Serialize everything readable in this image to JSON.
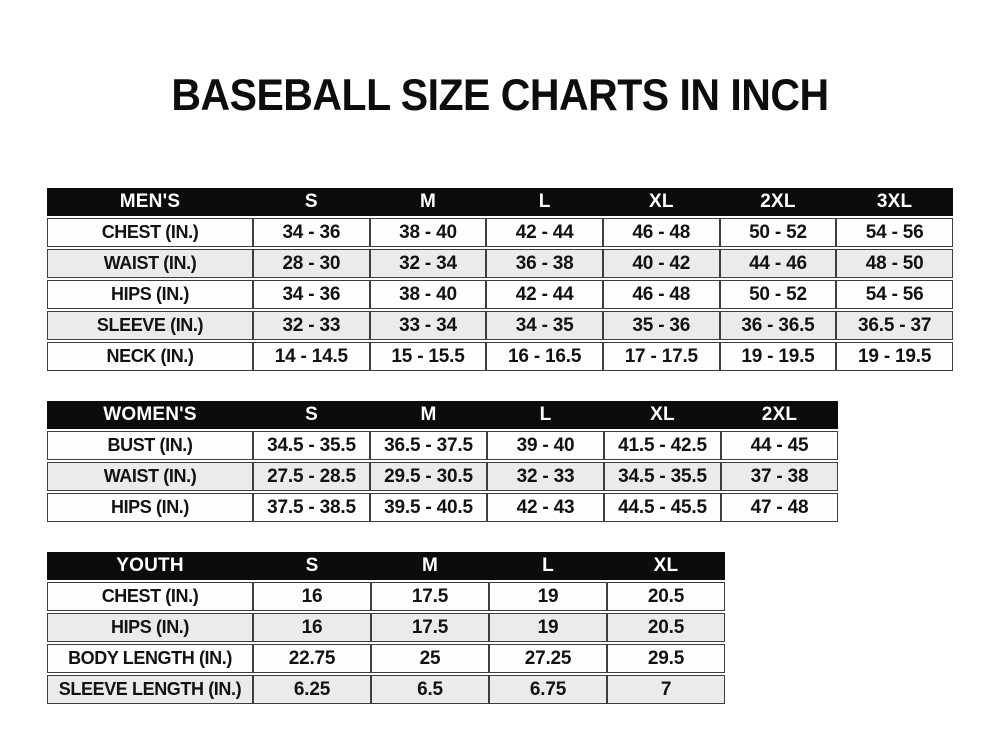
{
  "title": "BASEBALL SIZE CHARTS IN INCH",
  "colors": {
    "header_bg": "#0c0c0c",
    "header_text": "#ffffff",
    "row_white": "#fefefe",
    "row_alt": "#ebebeb",
    "cell_text": "#121212",
    "border": "#3d3d3d"
  },
  "chart_data": [
    {
      "type": "table",
      "title": "MEN'S",
      "columns": [
        "MEN'S",
        "S",
        "M",
        "L",
        "XL",
        "2XL",
        "3XL"
      ],
      "rows": [
        [
          "CHEST (IN.)",
          "34 - 36",
          "38 - 40",
          "42 - 44",
          "46 - 48",
          "50 - 52",
          "54 - 56"
        ],
        [
          "WAIST (IN.)",
          "28 - 30",
          "32 - 34",
          "36 - 38",
          "40 - 42",
          "44 - 46",
          "48 - 50"
        ],
        [
          "HIPS (IN.)",
          "34 - 36",
          "38 - 40",
          "42 - 44",
          "46 - 48",
          "50 - 52",
          "54 - 56"
        ],
        [
          "SLEEVE (IN.)",
          "32 - 33",
          "33 - 34",
          "34 - 35",
          "35 - 36",
          "36 - 36.5",
          "36.5 - 37"
        ],
        [
          "NECK (IN.)",
          "14 - 14.5",
          "15 - 15.5",
          "16 - 16.5",
          "17 - 17.5",
          "19 - 19.5",
          "19 - 19.5"
        ]
      ]
    },
    {
      "type": "table",
      "title": "WOMEN'S",
      "columns": [
        "WOMEN'S",
        "S",
        "M",
        "L",
        "XL",
        "2XL"
      ],
      "rows": [
        [
          "BUST (IN.)",
          "34.5 - 35.5",
          "36.5 - 37.5",
          "39 - 40",
          "41.5 - 42.5",
          "44 - 45"
        ],
        [
          "WAIST (IN.)",
          "27.5 - 28.5",
          "29.5 - 30.5",
          "32 - 33",
          "34.5 - 35.5",
          "37 - 38"
        ],
        [
          "HIPS (IN.)",
          "37.5 - 38.5",
          "39.5 - 40.5",
          "42 - 43",
          "44.5 - 45.5",
          "47 - 48"
        ]
      ]
    },
    {
      "type": "table",
      "title": "YOUTH",
      "columns": [
        "YOUTH",
        "S",
        "M",
        "L",
        "XL"
      ],
      "rows": [
        [
          "CHEST (IN.)",
          "16",
          "17.5",
          "19",
          "20.5"
        ],
        [
          "HIPS (IN.)",
          "16",
          "17.5",
          "19",
          "20.5"
        ],
        [
          "BODY LENGTH (IN.)",
          "22.75",
          "25",
          "27.25",
          "29.5"
        ],
        [
          "SLEEVE LENGTH (IN.)",
          "6.25",
          "6.5",
          "6.75",
          "7"
        ]
      ]
    }
  ]
}
